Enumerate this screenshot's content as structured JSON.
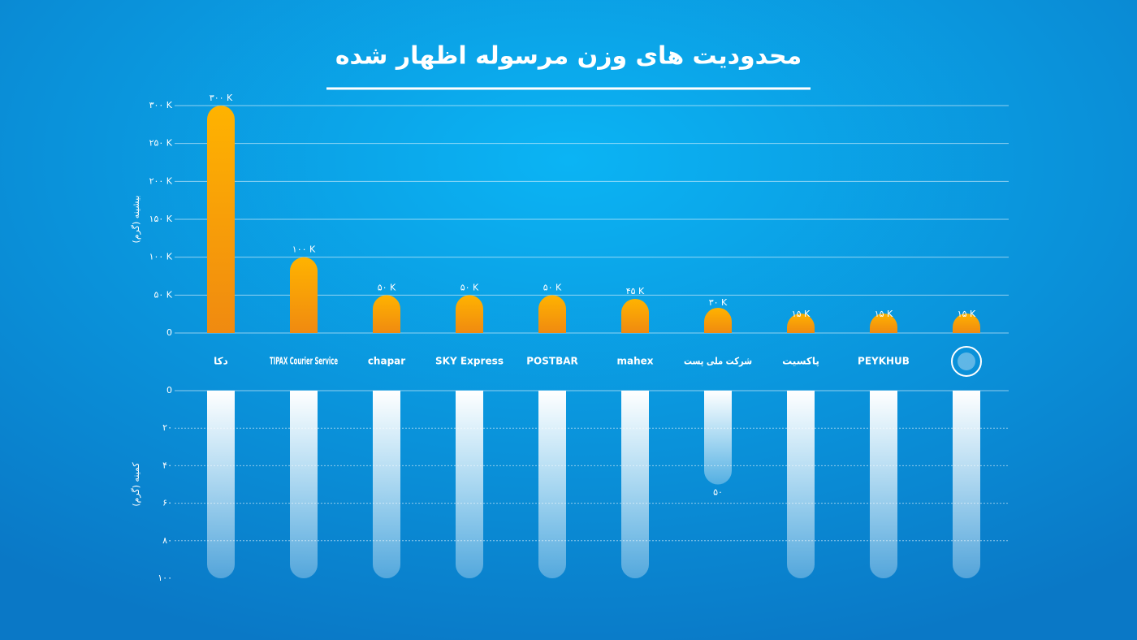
{
  "title": "محدودیت های وزن مرسوله اظهار شده",
  "chart_data": [
    {
      "type": "bar",
      "ylabel": "بیشینه (گرم)",
      "categories": [
        "دکا",
        "TIPAX Courier Service",
        "chapar",
        "SKY Express",
        "POSTBAR",
        "mahex",
        "شرکت ملی پست",
        "پاکسیت",
        "PEYKHUB",
        null
      ],
      "values": [
        300000,
        100000,
        50000,
        50000,
        50000,
        45000,
        30000,
        15000,
        15000,
        15000
      ],
      "value_labels": [
        "۳۰۰ K",
        "۱۰۰ K",
        "۵۰ K",
        "۵۰ K",
        "۵۰ K",
        "۴۵ K",
        "۳۰ K",
        "۱۵ K",
        "۱۵ K",
        "۱۵ K"
      ],
      "color": "#f7a21b",
      "ylim": [
        0,
        300000
      ],
      "yticks": [
        0,
        {
          "value": 50000,
          "label": "۵۰ K"
        },
        {
          "value": 100000,
          "label": "۱۰۰ K"
        },
        {
          "value": 150000,
          "label": "۱۵۰ K"
        },
        {
          "value": 200000,
          "label": "۲۰۰ K"
        },
        {
          "value": 250000,
          "label": "۲۵۰ K"
        },
        {
          "value": 300000,
          "label": "۳۰۰ K"
        }
      ],
      "grid": true
    },
    {
      "type": "bar-inverted",
      "ylabel": "کمینه (گرم)",
      "values": [
        100,
        100,
        100,
        100,
        100,
        100,
        50,
        100,
        100,
        100
      ],
      "value_labels": [
        null,
        null,
        null,
        null,
        null,
        null,
        "۵۰",
        null,
        null,
        null
      ],
      "color": "#ffffff",
      "ylim": [
        0,
        100
      ],
      "yticks": [
        0,
        {
          "value": 20,
          "label": "۲۰"
        },
        {
          "value": 40,
          "label": "۴۰"
        },
        {
          "value": 60,
          "label": "۶۰"
        },
        {
          "value": 80,
          "label": "۸۰"
        },
        {
          "value": 100,
          "label": "۱۰۰"
        }
      ],
      "grid": true
    }
  ]
}
